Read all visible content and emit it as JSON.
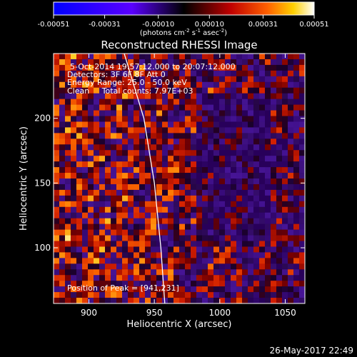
{
  "chart_data": {
    "type": "heatmap",
    "title": "Reconstructed RHESSI Image",
    "xlabel": "Heliocentric X (arcsec)",
    "ylabel": "Heliocentric Y (arcsec)",
    "xlim": [
      873,
      1065
    ],
    "ylim": [
      57,
      250
    ],
    "x_ticks": [
      900,
      950,
      1000,
      1050
    ],
    "y_ticks": [
      100,
      150,
      200
    ],
    "colorbar": {
      "label_main": "(photons cm",
      "sup1": "-2",
      "mid": " s",
      "sup2": "-1",
      "mid2": " asec",
      "sup3": "-2",
      "end": ")",
      "min": -0.00051,
      "max": 0.00051,
      "ticks": [
        {
          "value": -0.00051,
          "label": "-0.00051"
        },
        {
          "value": -0.00031,
          "label": "-0.00031"
        },
        {
          "value": -0.0001,
          "label": "-0.00010"
        },
        {
          "value": 0.0001,
          "label": "0.00010"
        },
        {
          "value": 0.00031,
          "label": "0.00031"
        },
        {
          "value": 0.00051,
          "label": "0.00051"
        }
      ]
    },
    "annotations": [
      "5-Oct-2014 19:57:12.000 to 20:07:12.000",
      "Detectors: 3F 6F 8F Att 0",
      "Energy Range: 25.0 - 50.0 keV",
      "Clean     Total counts: 7.97E+03"
    ],
    "peak_text": "Position of Peak = [941,231]",
    "limb_points": [
      [
        927,
        250
      ],
      [
        942,
        200
      ],
      [
        950,
        150
      ],
      [
        955,
        100
      ],
      [
        958,
        57
      ]
    ],
    "timestamp": "26-May-2017 22:49"
  }
}
